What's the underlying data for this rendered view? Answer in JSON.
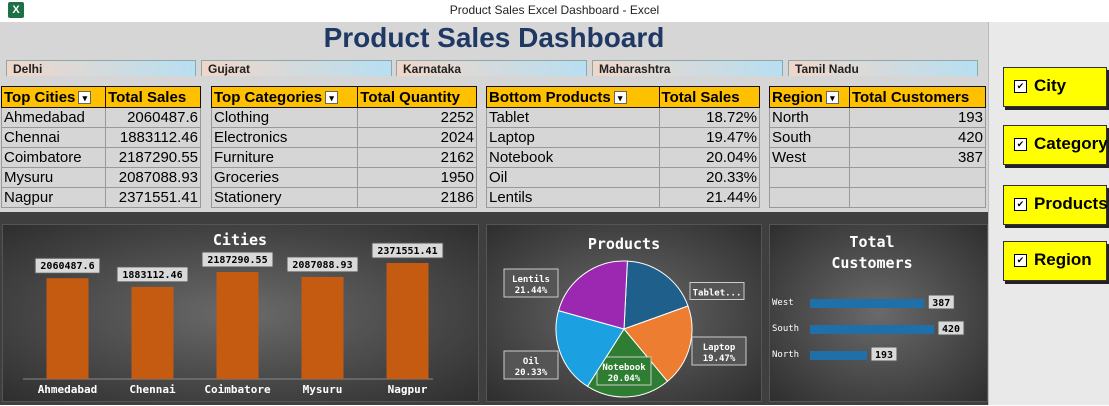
{
  "window": {
    "title": "Product Sales Excel Dashboard - Excel",
    "app_icon": "X"
  },
  "dashboard": {
    "title": "Product Sales Dashboard"
  },
  "slicers": [
    "Delhi",
    "Gujarat",
    "Karnataka",
    "Maharashtra",
    "Tamil Nadu"
  ],
  "tables": {
    "cities": {
      "headers": [
        "Top Cities",
        "Total Sales"
      ],
      "rows": [
        [
          "Ahmedabad",
          "2060487.6"
        ],
        [
          "Chennai",
          "1883112.46"
        ],
        [
          "Coimbatore",
          "2187290.55"
        ],
        [
          "Mysuru",
          "2087088.93"
        ],
        [
          "Nagpur",
          "2371551.41"
        ]
      ]
    },
    "categories": {
      "headers": [
        "Top Categories",
        "Total Quantity"
      ],
      "rows": [
        [
          "Clothing",
          "2252"
        ],
        [
          "Electronics",
          "2024"
        ],
        [
          "Furniture",
          "2162"
        ],
        [
          "Groceries",
          "1950"
        ],
        [
          "Stationery",
          "2186"
        ]
      ]
    },
    "products": {
      "headers": [
        "Bottom Products",
        "Total Sales"
      ],
      "rows": [
        [
          "Tablet",
          "18.72%"
        ],
        [
          "Laptop",
          "19.47%"
        ],
        [
          "Notebook",
          "20.04%"
        ],
        [
          "Oil",
          "20.33%"
        ],
        [
          "Lentils",
          "21.44%"
        ]
      ]
    },
    "region": {
      "headers": [
        "Region",
        "Total Customers"
      ],
      "rows": [
        [
          "North",
          "193"
        ],
        [
          "South",
          "420"
        ],
        [
          "West",
          "387"
        ],
        [
          "",
          ""
        ],
        [
          "",
          ""
        ]
      ]
    }
  },
  "buttons": [
    "City",
    "Category",
    "Products",
    "Region"
  ],
  "chart_data": [
    {
      "type": "bar",
      "title": "Cities",
      "categories": [
        "Ahmedabad",
        "Chennai",
        "Coimbatore",
        "Mysuru",
        "Nagpur"
      ],
      "values": [
        2060487.6,
        1883112.46,
        2187290.55,
        2087088.93,
        2371551.41
      ],
      "labels": [
        "2060487.6",
        "1883112.46",
        "2187290.55",
        "2087088.93",
        "2371551.41"
      ],
      "color": "#c55a11"
    },
    {
      "type": "pie",
      "title": "Products",
      "slices": [
        {
          "name": "Tablet",
          "label": "Tablet...",
          "value": 18.72,
          "pct": "",
          "color": "#1f5f8b"
        },
        {
          "name": "Laptop",
          "label": "Laptop",
          "value": 19.47,
          "pct": "19.47%",
          "color": "#ed7d31"
        },
        {
          "name": "Notebook",
          "label": "Notebook",
          "value": 20.04,
          "pct": "20.04%",
          "color": "#2e7d32"
        },
        {
          "name": "Oil",
          "label": "Oil",
          "value": 20.33,
          "pct": "20.33%",
          "color": "#1ba1e2"
        },
        {
          "name": "Lentils",
          "label": "Lentils",
          "value": 21.44,
          "pct": "21.44%",
          "color": "#9c27b0"
        }
      ]
    },
    {
      "type": "bar",
      "orientation": "horizontal",
      "title": "Total Customers",
      "title_lines": [
        "Total",
        "Customers"
      ],
      "categories": [
        "West",
        "South",
        "North"
      ],
      "values": [
        387,
        420,
        193
      ],
      "color": "#1f6fa8"
    }
  ]
}
